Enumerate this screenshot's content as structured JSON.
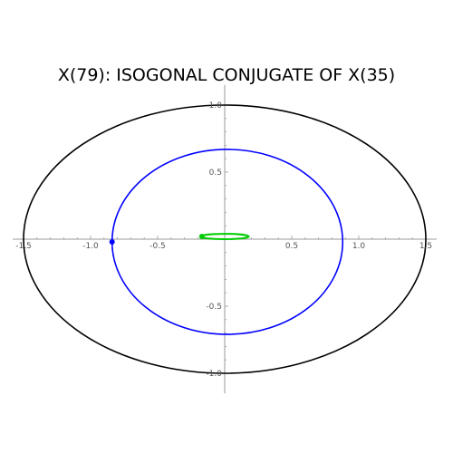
{
  "chart_data": {
    "type": "line",
    "title": "X(79): ISOGONAL CONJUGATE OF X(35)",
    "xlabel": "",
    "ylabel": "",
    "xlim": [
      -1.58,
      1.58
    ],
    "ylim": [
      -1.15,
      1.15
    ],
    "x_ticks": [
      -1.5,
      -1.0,
      -0.5,
      0.5,
      1.0,
      1.5
    ],
    "x_tick_labels": [
      "-1.5",
      "-1.0",
      "-0.5",
      "0.5",
      "1.0",
      "1.5"
    ],
    "y_ticks": [
      1.0,
      0.5,
      -0.5,
      -1.0
    ],
    "y_tick_labels": [
      "1.0",
      "0.5",
      "-0.5",
      "-1.0"
    ],
    "grid": false,
    "series": [
      {
        "kind": "ellipse",
        "center": [
          0,
          0
        ],
        "rx": 1.5,
        "ry": 1.0,
        "color": "#000000"
      },
      {
        "kind": "ellipse",
        "center": [
          0.02,
          -0.02
        ],
        "rx": 0.86,
        "ry": 0.69,
        "color": "#0000ff"
      },
      {
        "kind": "ellipse",
        "center": [
          0.0,
          0.02
        ],
        "rx": 0.18,
        "ry": 0.02,
        "color": "#00cc00"
      },
      {
        "kind": "point",
        "x": -0.84,
        "y": -0.02,
        "color": "#0000ff"
      },
      {
        "kind": "point",
        "x": -0.17,
        "y": 0.02,
        "color": "#00cc00"
      }
    ]
  }
}
